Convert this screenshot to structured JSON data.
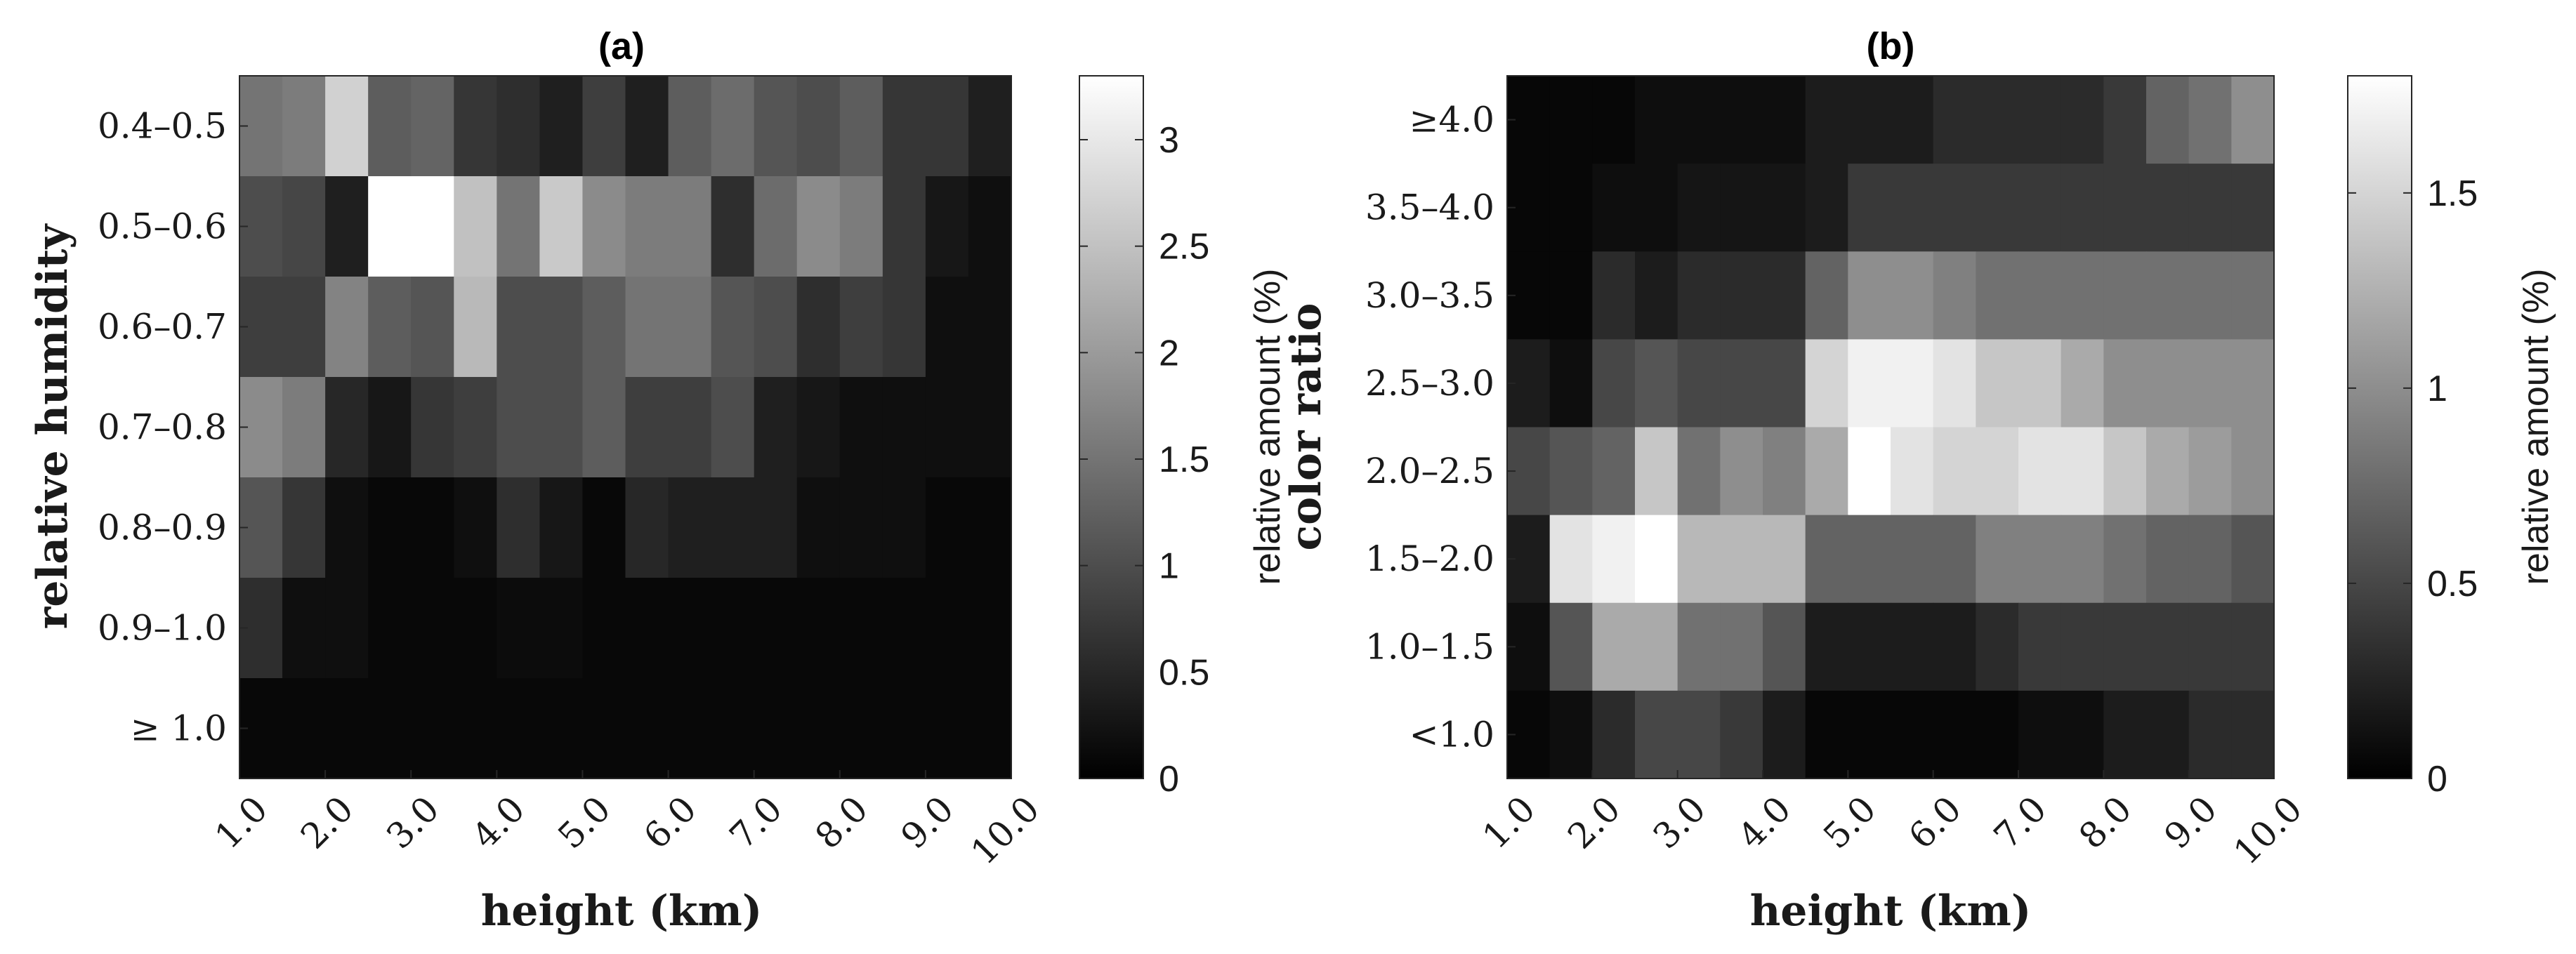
{
  "chart_data": [
    {
      "type": "heatmap",
      "title": "(a)",
      "xlabel": "height (km)",
      "ylabel": "relative humidity",
      "x_tick_labels": [
        "1.0",
        "2.0",
        "3.0",
        "4.0",
        "5.0",
        "6.0",
        "7.0",
        "8.0",
        "9.0",
        "10.0"
      ],
      "y_categories": [
        "0.4–0.5",
        "0.5–0.6",
        "0.6–0.7",
        "0.7–0.8",
        "0.8–0.9",
        "0.9–1.0",
        "≥ 1.0"
      ],
      "colorbar": {
        "label": "relative amount (%)",
        "range": [
          0,
          3.3
        ],
        "ticks": [
          0,
          0.5,
          1,
          1.5,
          2,
          2.5,
          3
        ],
        "tick_labels": [
          "0",
          "0.5",
          "1",
          "1.5",
          "2",
          "2.5",
          "3"
        ],
        "colormap": "gray"
      },
      "values": [
        [
          1.5,
          1.6,
          2.7,
          1.2,
          1.3,
          0.7,
          0.6,
          0.4,
          0.8,
          0.4,
          1.2,
          1.4,
          1.1,
          1.0,
          1.2,
          0.7,
          0.7,
          0.4
        ],
        [
          1.0,
          0.9,
          0.4,
          3.3,
          3.3,
          2.5,
          1.5,
          2.6,
          1.8,
          1.6,
          1.6,
          0.6,
          1.4,
          1.8,
          1.6,
          0.7,
          0.3,
          0.2
        ],
        [
          0.8,
          0.8,
          1.7,
          1.2,
          1.1,
          2.4,
          1.0,
          1.0,
          1.2,
          1.5,
          1.5,
          1.1,
          1.0,
          0.6,
          0.8,
          0.7,
          0.2,
          0.2
        ],
        [
          1.8,
          1.6,
          0.5,
          0.3,
          0.7,
          0.8,
          1.0,
          1.0,
          1.2,
          0.8,
          0.8,
          1.0,
          0.4,
          0.3,
          0.2,
          0.2,
          0.2,
          0.2
        ],
        [
          1.1,
          0.7,
          0.2,
          0.1,
          0.1,
          0.2,
          0.6,
          0.3,
          0.1,
          0.5,
          0.4,
          0.4,
          0.4,
          0.2,
          0.2,
          0.2,
          0.1,
          0.1
        ],
        [
          0.6,
          0.2,
          0.2,
          0.1,
          0.1,
          0.1,
          0.15,
          0.15,
          0.1,
          0.1,
          0.1,
          0.1,
          0.1,
          0.1,
          0.1,
          0.1,
          0.1,
          0.1
        ],
        [
          0.1,
          0.1,
          0.1,
          0.1,
          0.1,
          0.1,
          0.1,
          0.1,
          0.1,
          0.1,
          0.1,
          0.1,
          0.1,
          0.1,
          0.1,
          0.1,
          0.1,
          0.1
        ]
      ]
    },
    {
      "type": "heatmap",
      "title": "(b)",
      "xlabel": "height (km)",
      "ylabel": "color ratio",
      "x_tick_labels": [
        "1.0",
        "2.0",
        "3.0",
        "4.0",
        "5.0",
        "6.0",
        "7.0",
        "8.0",
        "9.0",
        "10.0"
      ],
      "y_categories": [
        "≥4.0",
        "3.5–4.0",
        "3.0–3.5",
        "2.5–3.0",
        "2.0–2.5",
        "1.5–2.0",
        "1.0–1.5",
        "<1.0"
      ],
      "colorbar": {
        "label": "relative amount (%)",
        "range": [
          0,
          1.8
        ],
        "ticks": [
          0,
          0.5,
          1,
          1.5
        ],
        "tick_labels": [
          "0",
          "0.5",
          "1",
          "1.5"
        ],
        "colormap": "gray"
      },
      "values": [
        [
          0.05,
          0.05,
          0.05,
          0.1,
          0.1,
          0.1,
          0.1,
          0.2,
          0.2,
          0.2,
          0.3,
          0.3,
          0.3,
          0.3,
          0.4,
          0.7,
          0.8,
          1.0
        ],
        [
          0.05,
          0.05,
          0.1,
          0.1,
          0.15,
          0.15,
          0.15,
          0.2,
          0.4,
          0.4,
          0.4,
          0.4,
          0.4,
          0.4,
          0.4,
          0.4,
          0.4,
          0.4
        ],
        [
          0.05,
          0.05,
          0.3,
          0.2,
          0.3,
          0.3,
          0.3,
          0.7,
          1.0,
          1.0,
          0.9,
          0.8,
          0.8,
          0.8,
          0.8,
          0.8,
          0.8,
          0.8
        ],
        [
          0.2,
          0.1,
          0.5,
          0.6,
          0.5,
          0.5,
          0.5,
          1.5,
          1.7,
          1.7,
          1.6,
          1.4,
          1.4,
          1.2,
          1.0,
          1.0,
          1.0,
          1.0
        ],
        [
          0.5,
          0.6,
          0.7,
          1.4,
          0.8,
          1.0,
          0.9,
          1.2,
          1.8,
          1.6,
          1.5,
          1.5,
          1.6,
          1.6,
          1.4,
          1.2,
          1.1,
          1.0
        ],
        [
          0.2,
          1.6,
          1.7,
          1.8,
          1.3,
          1.3,
          1.3,
          0.7,
          0.7,
          0.7,
          0.7,
          0.9,
          0.9,
          0.9,
          0.8,
          0.7,
          0.7,
          0.6
        ],
        [
          0.1,
          0.6,
          1.2,
          1.2,
          0.8,
          0.8,
          0.6,
          0.2,
          0.2,
          0.2,
          0.2,
          0.3,
          0.4,
          0.4,
          0.4,
          0.4,
          0.4,
          0.4
        ],
        [
          0.05,
          0.1,
          0.3,
          0.5,
          0.5,
          0.4,
          0.2,
          0.05,
          0.05,
          0.05,
          0.05,
          0.05,
          0.1,
          0.1,
          0.2,
          0.2,
          0.3,
          0.3
        ]
      ]
    }
  ]
}
